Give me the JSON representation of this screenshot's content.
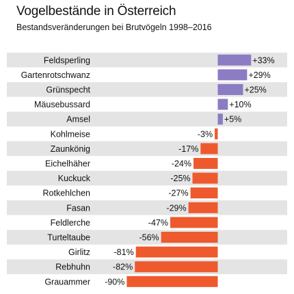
{
  "chart_data": {
    "type": "bar",
    "orientation": "horizontal",
    "title": "Vogelbestände in Österreich",
    "subtitle": "Bestandsveränderungen bei Brutvögeln 1998–2016",
    "unit": "%",
    "categories": [
      "Feldsperling",
      "Gartenrotschwanz",
      "Grünspecht",
      "Mäusebussard",
      "Amsel",
      "Kohlmeise",
      "Zaunkönig",
      "Eichelhäher",
      "Kuckuck",
      "Rotkehlchen",
      "Fasan",
      "Feldlerche",
      "Turteltaube",
      "Girlitz",
      "Rebhuhn",
      "Grauammer"
    ],
    "values": [
      33,
      29,
      25,
      10,
      5,
      -3,
      -17,
      -24,
      -25,
      -27,
      -29,
      -47,
      -56,
      -81,
      -82,
      -90
    ],
    "value_labels": [
      "+33%",
      "+29%",
      "+25%",
      "+10%",
      "+5%",
      "-3%",
      "-17%",
      "-24%",
      "-25%",
      "-27%",
      "-29%",
      "-47%",
      "-56%",
      "-81%",
      "-82%",
      "-90%"
    ],
    "xlim": [
      -90,
      33
    ],
    "grid": false,
    "legend": "none",
    "colors": {
      "positive": "#8c7cc3",
      "negative": "#ee5a2d",
      "row_stripe": "#e4e4e4",
      "row_plain": "#ffffff"
    }
  }
}
